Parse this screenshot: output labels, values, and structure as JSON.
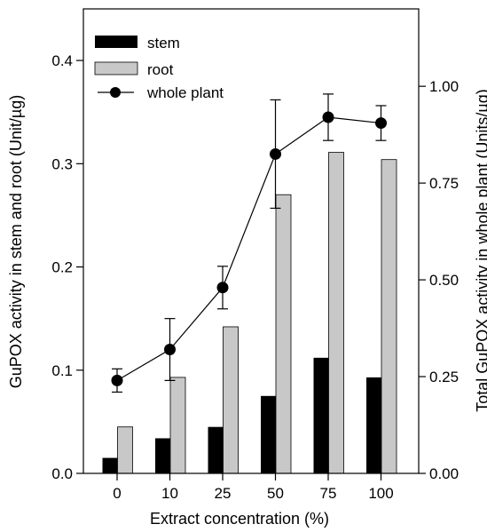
{
  "chart_data": {
    "type": "bar",
    "categories": [
      "0",
      "10",
      "25",
      "50",
      "75",
      "100"
    ],
    "xlabel": "Extract concentration (%)",
    "ylabel": "GuPOX activity in stem and root (Unit/µg)",
    "y2label": "Total GuPOX activity in whole plant (Units/µg)",
    "ylim": [
      0,
      0.45
    ],
    "y2lim": [
      0,
      1.2
    ],
    "yticks": [
      0.0,
      0.1,
      0.2,
      0.3,
      0.4
    ],
    "yticklabels": [
      "0.0",
      "0.1",
      "0.2",
      "0.3",
      "0.4"
    ],
    "y2ticks": [
      0.0,
      0.25,
      0.5,
      0.75,
      1.0
    ],
    "y2ticklabels": [
      "0.00",
      "0.25",
      "0.50",
      "0.75",
      "1.00"
    ],
    "grid": false,
    "legend_position": "top-left",
    "series": [
      {
        "name": "stem",
        "kind": "bar",
        "axis": "left",
        "color": "#000000",
        "values": [
          0.015,
          0.034,
          0.045,
          0.075,
          0.112,
          0.093
        ]
      },
      {
        "name": "root",
        "kind": "bar",
        "axis": "left",
        "color": "#c8c8c8",
        "values": [
          0.045,
          0.093,
          0.142,
          0.27,
          0.311,
          0.304
        ]
      },
      {
        "name": "whole plant",
        "kind": "line",
        "marker": "circle",
        "axis": "right",
        "color": "#000000",
        "values": [
          0.24,
          0.32,
          0.48,
          0.825,
          0.92,
          0.905
        ],
        "errors": [
          0.03,
          0.08,
          0.055,
          0.14,
          0.06,
          0.045
        ]
      }
    ]
  }
}
